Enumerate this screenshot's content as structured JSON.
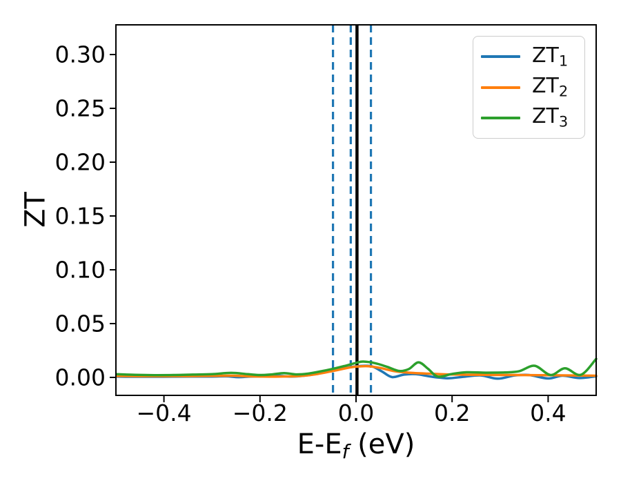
{
  "chart_data": {
    "type": "line",
    "title": "",
    "ylabel": "ZT",
    "xlabel": {
      "pre": "E-E",
      "sub": "f",
      "post": " (eV)"
    },
    "xlim": [
      -0.5,
      0.5
    ],
    "ylim": [
      -0.0167,
      0.3276
    ],
    "grid": false,
    "x_ticks": {
      "values": [
        -0.4,
        -0.2,
        0.0,
        0.2,
        0.4
      ],
      "labels": [
        "−0.4",
        "−0.2",
        "0.0",
        "0.2",
        "0.4"
      ]
    },
    "y_ticks": {
      "values": [
        0.0,
        0.05,
        0.1,
        0.15,
        0.2,
        0.25,
        0.3
      ],
      "labels": [
        "0.00",
        "0.05",
        "0.10",
        "0.15",
        "0.20",
        "0.25",
        "0.30"
      ]
    },
    "legend": {
      "position": "upper right",
      "entries": [
        {
          "label_base": "ZT",
          "label_sub": "1",
          "color": "#1f77b4"
        },
        {
          "label_base": "ZT",
          "label_sub": "2",
          "color": "#ff7f0e"
        },
        {
          "label_base": "ZT",
          "label_sub": "3",
          "color": "#2ca02c"
        }
      ]
    },
    "vlines": {
      "dashed": {
        "color": "#1f77b4",
        "style": "dashed",
        "positions": [
          -0.048,
          -0.011,
          0.031
        ]
      },
      "solid": {
        "color": "#000000",
        "style": "solid",
        "positions": [
          0.002
        ]
      }
    },
    "series": [
      {
        "name": "ZT1",
        "color": "#1f77b4",
        "points": [
          [
            -0.5,
            0.0008
          ],
          [
            -0.46,
            0.0006
          ],
          [
            -0.42,
            0.0006
          ],
          [
            -0.38,
            0.0007
          ],
          [
            -0.34,
            0.0008
          ],
          [
            -0.3,
            0.0008
          ],
          [
            -0.27,
            0.001
          ],
          [
            -0.245,
            0.0002
          ],
          [
            -0.22,
            0.0008
          ],
          [
            -0.19,
            0.001
          ],
          [
            -0.16,
            0.0013
          ],
          [
            -0.135,
            0.0008
          ],
          [
            -0.11,
            0.0015
          ],
          [
            -0.085,
            0.003
          ],
          [
            -0.06,
            0.0052
          ],
          [
            -0.04,
            0.0068
          ],
          [
            -0.02,
            0.0088
          ],
          [
            0.0,
            0.0103
          ],
          [
            0.02,
            0.0108
          ],
          [
            0.035,
            0.01
          ],
          [
            0.055,
            0.0052
          ],
          [
            0.075,
            0.0003
          ],
          [
            0.1,
            0.0026
          ],
          [
            0.125,
            0.003
          ],
          [
            0.155,
            0.0008
          ],
          [
            0.19,
            -0.0008
          ],
          [
            0.225,
            0.0006
          ],
          [
            0.26,
            0.0018
          ],
          [
            0.295,
            -0.0012
          ],
          [
            0.33,
            0.0018
          ],
          [
            0.36,
            0.0022
          ],
          [
            0.4,
            -0.001
          ],
          [
            0.43,
            0.0016
          ],
          [
            0.465,
            -0.0006
          ],
          [
            0.5,
            0.001
          ]
        ]
      },
      {
        "name": "ZT2",
        "color": "#ff7f0e",
        "points": [
          [
            -0.5,
            0.0013
          ],
          [
            -0.45,
            0.0011
          ],
          [
            -0.4,
            0.0011
          ],
          [
            -0.35,
            0.0012
          ],
          [
            -0.3,
            0.0014
          ],
          [
            -0.26,
            0.0016
          ],
          [
            -0.22,
            0.001
          ],
          [
            -0.18,
            0.0007
          ],
          [
            -0.14,
            0.0009
          ],
          [
            -0.11,
            0.0015
          ],
          [
            -0.08,
            0.0032
          ],
          [
            -0.05,
            0.0058
          ],
          [
            -0.02,
            0.0086
          ],
          [
            0.0,
            0.01
          ],
          [
            0.025,
            0.0104
          ],
          [
            0.05,
            0.0088
          ],
          [
            0.08,
            0.0058
          ],
          [
            0.11,
            0.0044
          ],
          [
            0.15,
            0.0035
          ],
          [
            0.19,
            0.0028
          ],
          [
            0.23,
            0.0025
          ],
          [
            0.28,
            0.0023
          ],
          [
            0.33,
            0.0022
          ],
          [
            0.38,
            0.0021
          ],
          [
            0.43,
            0.0019
          ],
          [
            0.47,
            0.0017
          ],
          [
            0.5,
            0.0016
          ]
        ]
      },
      {
        "name": "ZT3",
        "color": "#2ca02c",
        "points": [
          [
            -0.5,
            0.003
          ],
          [
            -0.46,
            0.0024
          ],
          [
            -0.42,
            0.0021
          ],
          [
            -0.38,
            0.0022
          ],
          [
            -0.34,
            0.0026
          ],
          [
            -0.3,
            0.003
          ],
          [
            -0.26,
            0.0042
          ],
          [
            -0.225,
            0.003
          ],
          [
            -0.2,
            0.0022
          ],
          [
            -0.175,
            0.0028
          ],
          [
            -0.15,
            0.004
          ],
          [
            -0.125,
            0.0028
          ],
          [
            -0.1,
            0.0035
          ],
          [
            -0.075,
            0.0055
          ],
          [
            -0.05,
            0.0078
          ],
          [
            -0.025,
            0.0105
          ],
          [
            0.0,
            0.0135
          ],
          [
            0.015,
            0.0147
          ],
          [
            0.04,
            0.0132
          ],
          [
            0.065,
            0.0098
          ],
          [
            0.09,
            0.006
          ],
          [
            0.11,
            0.0078
          ],
          [
            0.13,
            0.014
          ],
          [
            0.15,
            0.008
          ],
          [
            0.17,
            0.0008
          ],
          [
            0.2,
            0.0032
          ],
          [
            0.23,
            0.0048
          ],
          [
            0.27,
            0.0044
          ],
          [
            0.31,
            0.0046
          ],
          [
            0.34,
            0.0058
          ],
          [
            0.372,
            0.0108
          ],
          [
            0.405,
            0.0022
          ],
          [
            0.435,
            0.0085
          ],
          [
            0.468,
            0.0024
          ],
          [
            0.5,
            0.0172
          ]
        ]
      }
    ],
    "colors": {
      "spine": "#000000",
      "tick_label": "#000000",
      "background": "#ffffff"
    }
  }
}
